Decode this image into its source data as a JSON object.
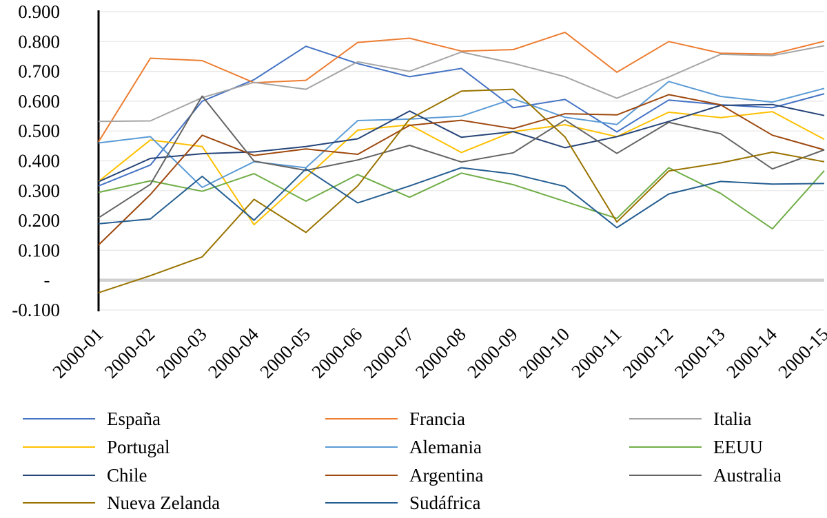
{
  "chart_data": {
    "type": "line",
    "title": "",
    "xlabel": "",
    "ylabel": "",
    "ylim": [
      -0.1,
      0.9
    ],
    "yticks": [
      -0.1,
      0,
      0.1,
      0.2,
      0.3,
      0.4,
      0.5,
      0.6,
      0.7,
      0.8,
      0.9
    ],
    "ytick_labels": [
      "-0.100",
      "-",
      "0.100",
      "0.200",
      "0.300",
      "0.400",
      "0.500",
      "0.600",
      "0.700",
      "0.800",
      "0.900"
    ],
    "grid": "horizontal",
    "legend_position": "bottom",
    "categories": [
      "2000-01",
      "2000-02",
      "2000-03",
      "2000-04",
      "2000-05",
      "2000-06",
      "2000-07",
      "2000-08",
      "2000-09",
      "2000-10",
      "2000-11",
      "2000-12",
      "2000-13",
      "2000-14",
      "2000-15"
    ],
    "series": [
      {
        "name": "España",
        "color": "#4472C4",
        "values": [
          0.316,
          0.386,
          0.6,
          0.672,
          0.784,
          0.726,
          0.682,
          0.71,
          0.578,
          0.606,
          0.497,
          0.604,
          0.588,
          0.578,
          0.625
        ]
      },
      {
        "name": "Francia",
        "color": "#ED7D31",
        "values": [
          0.464,
          0.744,
          0.736,
          0.662,
          0.67,
          0.797,
          0.811,
          0.768,
          0.773,
          0.831,
          0.697,
          0.8,
          0.761,
          0.758,
          0.801
        ]
      },
      {
        "name": "Italia",
        "color": "#A5A5A5",
        "values": [
          0.532,
          0.534,
          0.612,
          0.663,
          0.64,
          0.732,
          0.7,
          0.765,
          0.727,
          0.682,
          0.61,
          0.681,
          0.757,
          0.753,
          0.786
        ]
      },
      {
        "name": "Portugal",
        "color": "#FFC000",
        "values": [
          0.331,
          0.47,
          0.448,
          0.186,
          0.344,
          0.503,
          0.521,
          0.428,
          0.498,
          0.521,
          0.481,
          0.563,
          0.545,
          0.565,
          0.472
        ]
      },
      {
        "name": "Alemania",
        "color": "#5B9BD5",
        "values": [
          0.46,
          0.481,
          0.311,
          0.397,
          0.377,
          0.535,
          0.54,
          0.55,
          0.608,
          0.546,
          0.522,
          0.666,
          0.616,
          0.597,
          0.643
        ]
      },
      {
        "name": "EEUU",
        "color": "#70AD47",
        "values": [
          0.294,
          0.333,
          0.298,
          0.357,
          0.265,
          0.354,
          0.278,
          0.359,
          0.32,
          0.264,
          0.207,
          0.377,
          0.291,
          0.172,
          0.367
        ]
      },
      {
        "name": "Chile",
        "color": "#264478",
        "values": [
          0.33,
          0.408,
          0.424,
          0.43,
          0.448,
          0.474,
          0.567,
          0.479,
          0.498,
          0.444,
          0.481,
          0.532,
          0.586,
          0.589,
          0.552
        ]
      },
      {
        "name": "Argentina",
        "color": "#9E480E",
        "values": [
          0.118,
          0.287,
          0.486,
          0.418,
          0.44,
          0.422,
          0.519,
          0.536,
          0.508,
          0.558,
          0.554,
          0.622,
          0.588,
          0.486,
          0.437
        ]
      },
      {
        "name": "Australia",
        "color": "#636363",
        "values": [
          0.209,
          0.321,
          0.617,
          0.399,
          0.368,
          0.403,
          0.452,
          0.396,
          0.427,
          0.537,
          0.425,
          0.529,
          0.491,
          0.373,
          0.437
        ]
      },
      {
        "name": "Nueva Zelanda",
        "color": "#997300",
        "values": [
          -0.042,
          0.015,
          0.078,
          0.271,
          0.16,
          0.316,
          0.54,
          0.634,
          0.64,
          0.48,
          0.195,
          0.366,
          0.393,
          0.429,
          0.397
        ]
      },
      {
        "name": "Sudáfrica",
        "color": "#255E91",
        "values": [
          0.189,
          0.205,
          0.348,
          0.201,
          0.373,
          0.259,
          0.316,
          0.377,
          0.356,
          0.314,
          0.176,
          0.289,
          0.331,
          0.322,
          0.324
        ]
      }
    ]
  }
}
